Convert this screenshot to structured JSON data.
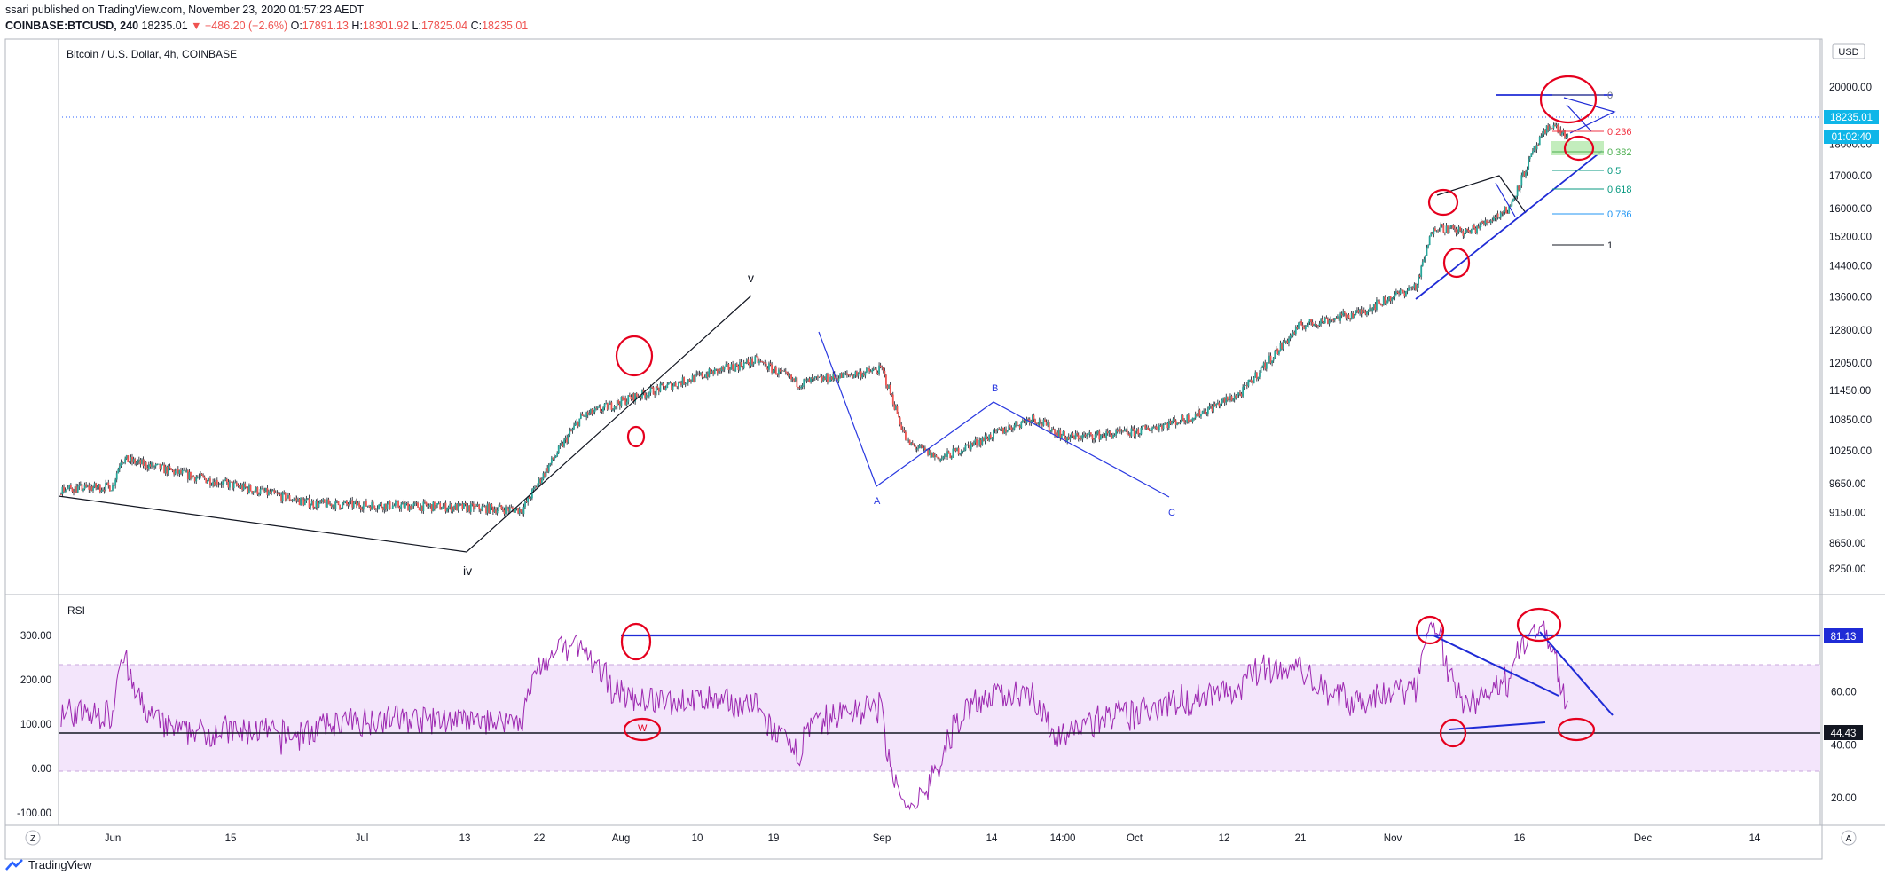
{
  "header": {
    "line1": "ssari published on TradingView.com, November 23, 2020 01:57:23 AEDT",
    "symbol": "COINBASE:BTCUSD, 240",
    "last": "18235.01",
    "change": "▼ −486.20 (−2.6%)",
    "o_label": "O:",
    "o_value": "17891.13",
    "h_label": "H:",
    "h_value": "18301.92",
    "l_label": "L:",
    "l_value": "17825.04",
    "c_label": "C:",
    "c_value": "18235.01"
  },
  "main_pane": {
    "title": "Bitcoin / U.S. Dollar, 4h, COINBASE",
    "currency_badge": "USD",
    "price_ticks": [
      "20000.00",
      "19000.00",
      "18000.00",
      "17000.00",
      "16000.00",
      "15200.00",
      "14400.00",
      "13600.00",
      "12800.00",
      "12050.00",
      "11450.00",
      "10850.00",
      "10250.00",
      "9650.00",
      "9150.00",
      "8650.00",
      "8250.00"
    ],
    "last_price_label": "18235.01",
    "countdown_label": "01:02:40",
    "wave_labels": {
      "iv": "iv",
      "v": "v",
      "A": "A",
      "B": "B",
      "C": "C"
    },
    "fib_levels": [
      {
        "label": "0",
        "value": 19100,
        "color": "#787b86"
      },
      {
        "label": "0.236",
        "value": 18360,
        "color": "#f23645"
      },
      {
        "label": "0.382",
        "value": 17900,
        "color": "#4caf50"
      },
      {
        "label": "0.5",
        "value": 17500,
        "color": "#089981"
      },
      {
        "label": "0.618",
        "value": 17180,
        "color": "#089981"
      },
      {
        "label": "0.786",
        "value": 16700,
        "color": "#2196f3"
      },
      {
        "label": "1",
        "value": 16000,
        "color": "#131722"
      }
    ]
  },
  "rsi_pane": {
    "title": "RSI",
    "left_ticks": [
      "300.00",
      "200.00",
      "100.00",
      "0.00",
      "-100.00"
    ],
    "right_ticks": [
      "60.00",
      "40.00",
      "20.00"
    ],
    "upper_label": "81.13",
    "lower_label": "44.43",
    "circle_label": "W"
  },
  "time_axis": {
    "labels": [
      "Jun",
      "15",
      "Jul",
      "13",
      "22",
      "Aug",
      "10",
      "19",
      "Sep",
      "14",
      "14:00",
      "Oct",
      "12",
      "21",
      "Nov",
      "16",
      "Dec",
      "14"
    ],
    "z_button": "Z",
    "a_button": "A"
  },
  "footer": {
    "brand": "TradingView"
  },
  "chart_data": {
    "type": "candlestick",
    "title": "Bitcoin / U.S. Dollar, 4h, COINBASE",
    "xlabel": "",
    "ylabel": "",
    "y_axis": "log",
    "ylim": [
      8000,
      20600
    ],
    "anchors": [
      {
        "date": "2020-05-20",
        "close": 9500
      },
      {
        "date": "2020-06-01",
        "close": 9600
      },
      {
        "date": "2020-06-02",
        "close": 10100
      },
      {
        "date": "2020-06-10",
        "close": 9800
      },
      {
        "date": "2020-06-25",
        "close": 9300
      },
      {
        "date": "2020-07-10",
        "close": 9250
      },
      {
        "date": "2020-07-20",
        "close": 9200
      },
      {
        "date": "2020-07-27",
        "close": 10900
      },
      {
        "date": "2020-08-02",
        "close": 11300
      },
      {
        "date": "2020-08-11",
        "close": 11800
      },
      {
        "date": "2020-08-17",
        "close": 12100
      },
      {
        "date": "2020-08-22",
        "close": 11600
      },
      {
        "date": "2020-09-01",
        "close": 11900
      },
      {
        "date": "2020-09-04",
        "close": 10400
      },
      {
        "date": "2020-09-08",
        "close": 10100
      },
      {
        "date": "2020-09-19",
        "close": 10900
      },
      {
        "date": "2020-09-23",
        "close": 10500
      },
      {
        "date": "2020-10-01",
        "close": 10600
      },
      {
        "date": "2020-10-08",
        "close": 10900
      },
      {
        "date": "2020-10-14",
        "close": 11400
      },
      {
        "date": "2020-10-21",
        "close": 12900
      },
      {
        "date": "2020-10-28",
        "close": 13200
      },
      {
        "date": "2020-11-04",
        "close": 13900
      },
      {
        "date": "2020-11-06",
        "close": 15500
      },
      {
        "date": "2020-11-10",
        "close": 15300
      },
      {
        "date": "2020-11-15",
        "close": 16000
      },
      {
        "date": "2020-11-18",
        "close": 17800
      },
      {
        "date": "2020-11-20",
        "close": 18700
      },
      {
        "date": "2020-11-22",
        "close": 18235
      }
    ],
    "rsi": {
      "upper_band": 70,
      "lower_band": 30,
      "levels": [
        {
          "label": "81.13",
          "value": 81.13
        },
        {
          "label": "44.43",
          "value": 44.43
        }
      ]
    },
    "colors": {
      "up": "#26a69a",
      "down": "#ef5350",
      "rsi": "#9c27b0",
      "annotation": "#e5001e",
      "trend": "#1f2bd6"
    }
  }
}
